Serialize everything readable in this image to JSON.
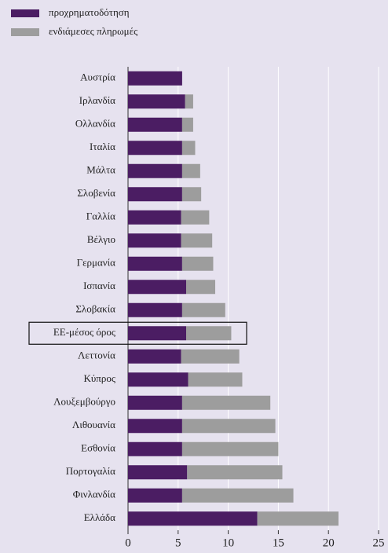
{
  "chart_data": {
    "type": "stacked_barh",
    "categories": [
      "Αυστρία",
      "Ιρλανδία",
      "Ολλανδία",
      "Ιταλία",
      "Μάλτα",
      "Σλοβενία",
      "Γαλλία",
      "Βέλγιο",
      "Γερμανία",
      "Ισπανία",
      "Σλοβακία",
      "ΕΕ-μέσος όρος",
      "Λεττονία",
      "Κύπρος",
      "Λουξεμβούργο",
      "Λιθουανία",
      "Εσθονία",
      "Πορτογαλία",
      "Φινλανδία",
      "Ελλάδα"
    ],
    "series": [
      {
        "name": "προχρηματοδότηση",
        "color": "#4b1d63",
        "values": [
          5.4,
          5.7,
          5.4,
          5.4,
          5.4,
          5.4,
          5.3,
          5.3,
          5.4,
          5.8,
          5.4,
          5.8,
          5.3,
          6.0,
          5.4,
          5.4,
          5.4,
          5.9,
          5.4,
          12.9
        ]
      },
      {
        "name": "ενδιάμεσες πληρωμές",
        "color": "#9d9d9d",
        "values": [
          0,
          0.8,
          1.1,
          1.3,
          1.8,
          1.9,
          2.8,
          3.1,
          3.1,
          2.9,
          4.3,
          4.5,
          5.8,
          5.4,
          8.8,
          9.3,
          9.6,
          9.5,
          11.1,
          8.1
        ]
      }
    ],
    "xlim": [
      0,
      25
    ],
    "xticks": [
      0,
      5,
      10,
      15,
      20,
      25
    ],
    "grid": true,
    "legend": "top-left",
    "highlight_category": 11
  }
}
